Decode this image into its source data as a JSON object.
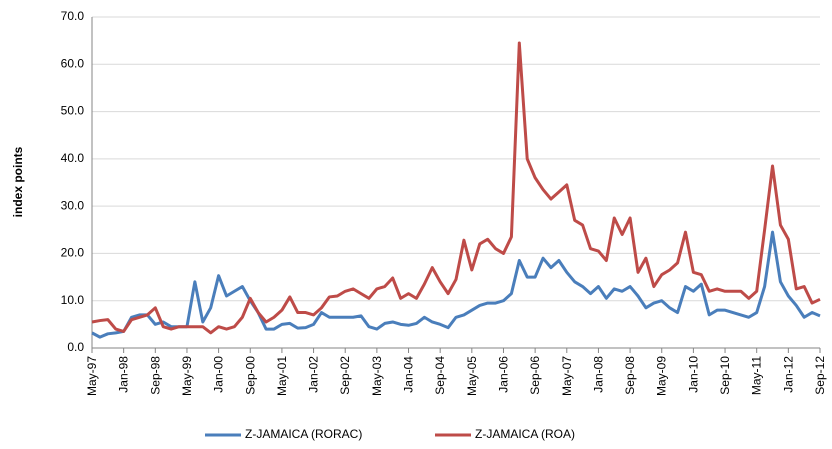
{
  "chart_data": {
    "type": "line",
    "y_label": "index points",
    "categories": [
      "May-97",
      null,
      null,
      null,
      "Jan-98",
      null,
      null,
      null,
      "Sep-98",
      null,
      null,
      null,
      "May-99",
      null,
      null,
      null,
      "Jan-00",
      null,
      null,
      null,
      "Sep-00",
      null,
      null,
      null,
      "May-01",
      null,
      null,
      null,
      "Jan-02",
      null,
      null,
      null,
      "Sep-02",
      null,
      null,
      null,
      "May-03",
      null,
      null,
      null,
      "Jan-04",
      null,
      null,
      null,
      "Sep-04",
      null,
      null,
      null,
      "May-05",
      null,
      null,
      null,
      "Jan-06",
      null,
      null,
      null,
      "Sep-06",
      null,
      null,
      null,
      "May-07",
      null,
      null,
      null,
      "Jan-08",
      null,
      null,
      null,
      "Sep-08",
      null,
      null,
      null,
      "May-09",
      null,
      null,
      null,
      "Jan-10",
      null,
      null,
      null,
      "Sep-10",
      null,
      null,
      null,
      "May-11",
      null,
      null,
      null,
      "Jan-12",
      null,
      null,
      null,
      "Sep-12"
    ],
    "series": [
      {
        "name": "Z-JAMAICA (RORAC)",
        "color": "#4a7ebb",
        "values": [
          3.2,
          2.3,
          3.0,
          3.2,
          3.5,
          6.5,
          7.0,
          7.0,
          5.0,
          5.5,
          4.5,
          4.5,
          4.5,
          14.0,
          5.5,
          8.5,
          15.3,
          11.0,
          12.0,
          13.0,
          10.0,
          7.5,
          4.0,
          4.0,
          5.0,
          5.2,
          4.2,
          4.3,
          5.0,
          7.5,
          6.5,
          6.5,
          6.5,
          6.5,
          6.8,
          4.5,
          4.0,
          5.2,
          5.5,
          5.0,
          4.8,
          5.2,
          6.5,
          5.5,
          5.0,
          4.3,
          6.5,
          7.0,
          8.0,
          9.0,
          9.5,
          9.5,
          10.0,
          11.5,
          18.5,
          15,
          15,
          19,
          17,
          18.5,
          16,
          14,
          13,
          11.5,
          13,
          10.5,
          12.5,
          12,
          13,
          11,
          8.5,
          9.5,
          10,
          8.5,
          7.5,
          13,
          12,
          13.5,
          7,
          8,
          8,
          7.5,
          7,
          6.5,
          7.5,
          13,
          24.5,
          14,
          11,
          9,
          6.5,
          7.5,
          6.8
        ]
      },
      {
        "name": "Z-JAMAICA (ROA)",
        "color": "#be4b48",
        "values": [
          5.5,
          5.8,
          6.0,
          4.0,
          3.5,
          6.0,
          6.5,
          7.0,
          8.5,
          4.5,
          4.0,
          4.5,
          4.5,
          4.5,
          4.5,
          3.2,
          4.5,
          4.0,
          4.5,
          6.5,
          10.5,
          7.5,
          5.5,
          6.5,
          8.0,
          10.8,
          7.5,
          7.5,
          7.0,
          8.5,
          10.8,
          11.0,
          12.0,
          12.5,
          11.5,
          10.5,
          12.5,
          13.0,
          14.8,
          10.5,
          11.5,
          10.5,
          13.5,
          17.0,
          14.0,
          11.5,
          14.5,
          22.8,
          16.5,
          22.0,
          23.0,
          21.0,
          20.0,
          23.5,
          64.5,
          40,
          36,
          33.5,
          31.5,
          33,
          34.5,
          27,
          26,
          21,
          20.5,
          18.5,
          27.5,
          24,
          27.5,
          16,
          19,
          13,
          15.5,
          16.5,
          18,
          24.5,
          16,
          15.5,
          12,
          12.5,
          12,
          12,
          12,
          10.5,
          12,
          25,
          38.5,
          26,
          23,
          12.5,
          13,
          9.5,
          10.3
        ]
      }
    ],
    "ylim": [
      0,
      70
    ],
    "yticks": [
      {
        "value": 0,
        "label": "0.0"
      },
      {
        "value": 10,
        "label": "10.0"
      },
      {
        "value": 20,
        "label": "20.0"
      },
      {
        "value": 30,
        "label": "30.0"
      },
      {
        "value": 40,
        "label": "40.0"
      },
      {
        "value": 50,
        "label": "50.0"
      },
      {
        "value": 60,
        "label": "60.0"
      },
      {
        "value": 70,
        "label": "70.0"
      }
    ],
    "grid": true,
    "legend": "bottom"
  }
}
